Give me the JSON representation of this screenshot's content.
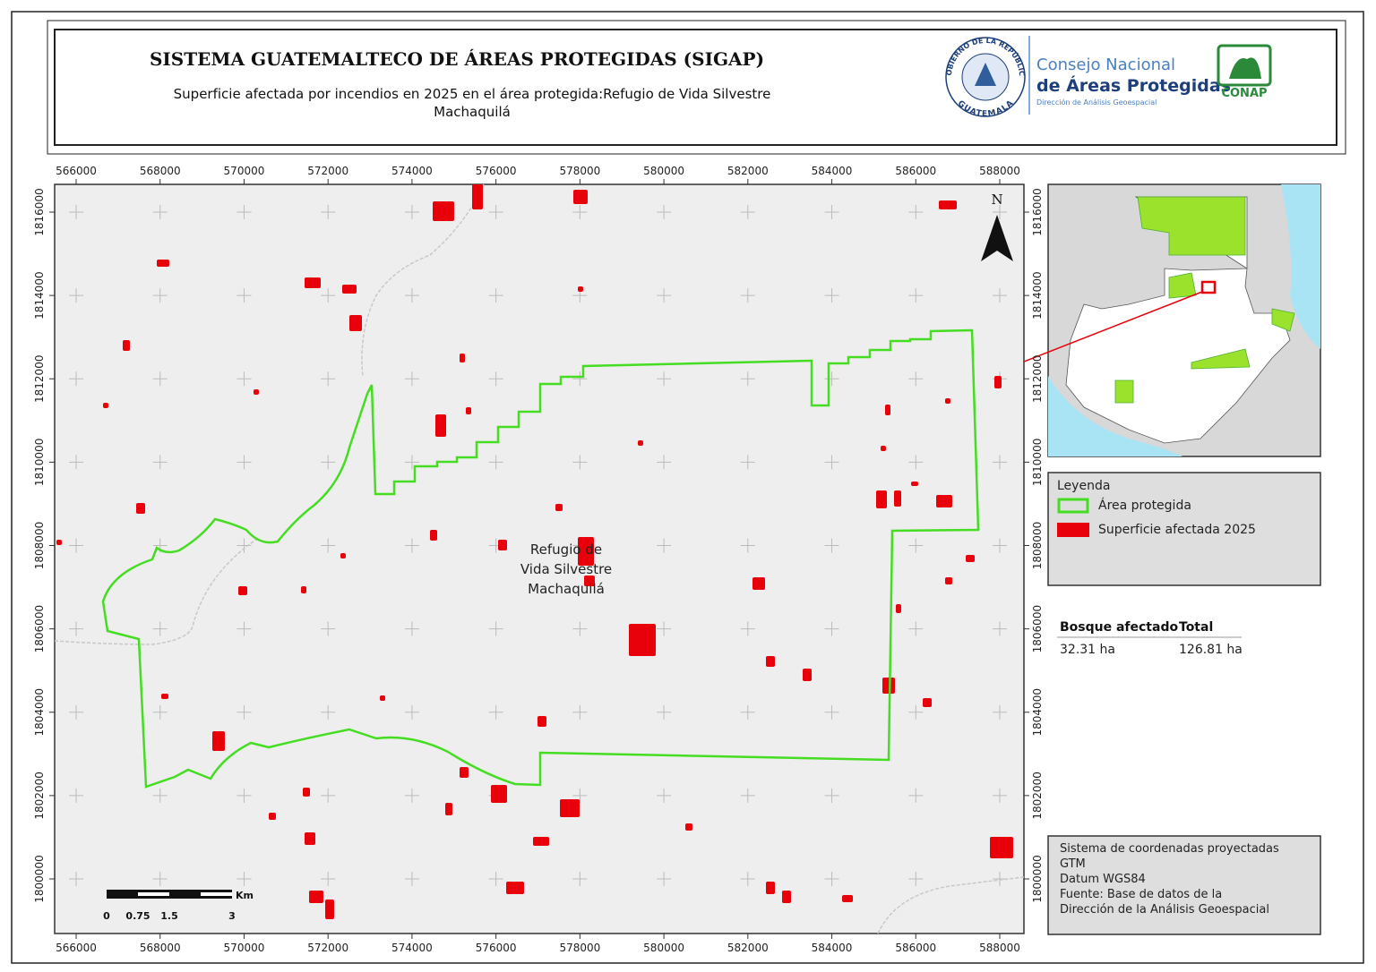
{
  "header": {
    "title": "SISTEMA GUATEMALTECO DE ÁREAS PROTEGIDAS  (SIGAP)",
    "subtitle_lines": [
      "Superficie afectada por incendios en 2025 en el área protegida:Refugio de Vida Silvestre",
      "Machaquilá"
    ],
    "seal_top": "GOBIERNO DE LA REPÚBLICA",
    "seal_bottom": "GUATEMALA",
    "org_line1": "Consejo Nacional",
    "org_line2": "de Áreas Protegidas",
    "org_line3": "Dirección de Análisis Geoespacial",
    "org_abbr": "CONAP"
  },
  "map": {
    "x_ticks": [
      566000,
      568000,
      570000,
      572000,
      574000,
      576000,
      578000,
      580000,
      582000,
      584000,
      586000,
      588000
    ],
    "y_ticks": [
      1816000,
      1814000,
      1812000,
      1810000,
      1808000,
      1806000,
      1804000,
      1802000,
      1800000
    ],
    "north": "N",
    "area_label_lines": [
      "Refugio de",
      "Vida Silvestre",
      "Machaquilá"
    ],
    "scale_unit": "Km",
    "scale_labels": [
      0,
      0.75,
      1.5,
      3
    ]
  },
  "legend": {
    "title": "Leyenda",
    "items": [
      {
        "name": "Área protegida",
        "color": "#44dd22"
      },
      {
        "name": "Superficie afectada 2025",
        "color": "#e8000b"
      }
    ]
  },
  "stats": {
    "headers": [
      "Bosque afectado",
      "Total"
    ],
    "values": [
      "32.31 ha",
      "126.81 ha"
    ]
  },
  "notes": [
    "Sistema de coordenadas proyectadas",
    "GTM",
    "Datum WGS84",
    "Fuente: Base de datos de la",
    "Dirección de la Análisis Geoespacial"
  ]
}
